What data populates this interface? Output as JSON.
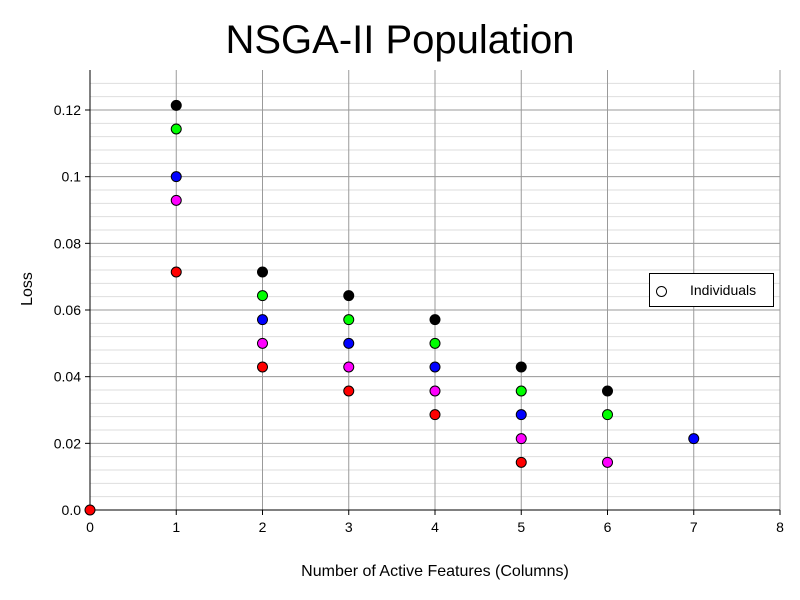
{
  "chart_data": {
    "type": "scatter",
    "title": "NSGA-II Population",
    "xlabel": "Number of Active Features (Columns)",
    "ylabel": "Loss",
    "xlim": [
      0,
      8
    ],
    "ylim": [
      0,
      0.132
    ],
    "x_ticks": [
      0,
      1,
      2,
      3,
      4,
      5,
      6,
      7,
      8
    ],
    "x_tick_labels": [
      "0",
      "1",
      "2",
      "3",
      "4",
      "5",
      "6",
      "7",
      "8"
    ],
    "y_ticks": [
      0,
      0.02,
      0.04,
      0.06,
      0.08,
      0.1,
      0.12
    ],
    "y_tick_labels": [
      "0.0",
      "0.02",
      "0.04",
      "0.06",
      "0.08",
      "0.1",
      "0.12"
    ],
    "grid": true,
    "minor_grid": true,
    "legend": {
      "placement": "right",
      "entries": [
        "Individuals"
      ]
    },
    "points": [
      {
        "x": 0,
        "y": 0.0,
        "color": "#ff0000"
      },
      {
        "x": 1,
        "y": 0.1214,
        "color": "#000000"
      },
      {
        "x": 1,
        "y": 0.1143,
        "color": "#00ff00"
      },
      {
        "x": 1,
        "y": 0.1,
        "color": "#0000ff"
      },
      {
        "x": 1,
        "y": 0.0929,
        "color": "#ff00ff"
      },
      {
        "x": 1,
        "y": 0.0714,
        "color": "#ff0000"
      },
      {
        "x": 2,
        "y": 0.0714,
        "color": "#000000"
      },
      {
        "x": 2,
        "y": 0.0643,
        "color": "#00ff00"
      },
      {
        "x": 2,
        "y": 0.0571,
        "color": "#0000ff"
      },
      {
        "x": 2,
        "y": 0.05,
        "color": "#ff00ff"
      },
      {
        "x": 2,
        "y": 0.0429,
        "color": "#ff0000"
      },
      {
        "x": 3,
        "y": 0.0643,
        "color": "#000000"
      },
      {
        "x": 3,
        "y": 0.0571,
        "color": "#00ff00"
      },
      {
        "x": 3,
        "y": 0.05,
        "color": "#0000ff"
      },
      {
        "x": 3,
        "y": 0.0429,
        "color": "#ff00ff"
      },
      {
        "x": 3,
        "y": 0.0357,
        "color": "#ff0000"
      },
      {
        "x": 4,
        "y": 0.0571,
        "color": "#000000"
      },
      {
        "x": 4,
        "y": 0.05,
        "color": "#00ff00"
      },
      {
        "x": 4,
        "y": 0.0429,
        "color": "#0000ff"
      },
      {
        "x": 4,
        "y": 0.0357,
        "color": "#ff00ff"
      },
      {
        "x": 4,
        "y": 0.0286,
        "color": "#ff0000"
      },
      {
        "x": 5,
        "y": 0.0429,
        "color": "#000000"
      },
      {
        "x": 5,
        "y": 0.0357,
        "color": "#00ff00"
      },
      {
        "x": 5,
        "y": 0.0286,
        "color": "#0000ff"
      },
      {
        "x": 5,
        "y": 0.0214,
        "color": "#ff00ff"
      },
      {
        "x": 5,
        "y": 0.0143,
        "color": "#ff0000"
      },
      {
        "x": 6,
        "y": 0.0357,
        "color": "#000000"
      },
      {
        "x": 6,
        "y": 0.0286,
        "color": "#00ff00"
      },
      {
        "x": 6,
        "y": 0.0143,
        "color": "#ff00ff"
      },
      {
        "x": 7,
        "y": 0.0214,
        "color": "#0000ff"
      }
    ]
  }
}
